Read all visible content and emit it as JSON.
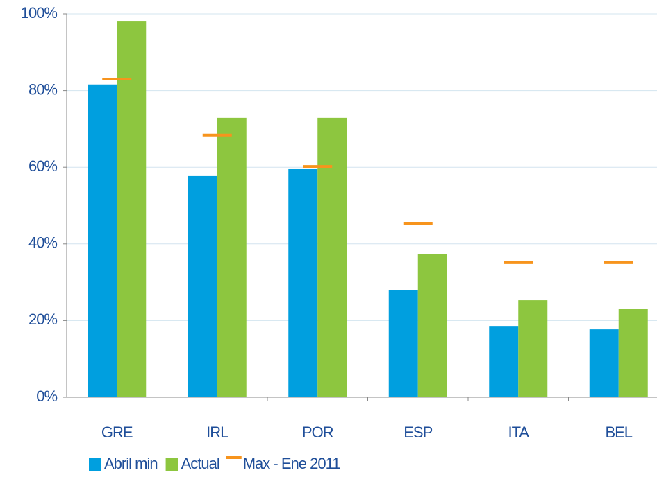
{
  "chart_data": {
    "type": "bar",
    "categories": [
      "GRE",
      "IRL",
      "POR",
      "ESP",
      "ITA",
      "BEL"
    ],
    "series": [
      {
        "name": "Abril min",
        "color": "#009fdf",
        "style": "bar",
        "values": [
          81.6,
          57.7,
          59.5,
          28.0,
          18.6,
          17.7
        ]
      },
      {
        "name": "Actual",
        "color": "#8dc63f",
        "style": "bar",
        "values": [
          98.0,
          72.9,
          72.9,
          37.4,
          25.3,
          23.1
        ]
      },
      {
        "name": "Max - Ene 2011",
        "color": "#f7941d",
        "style": "dash",
        "values": [
          83.0,
          68.4,
          60.2,
          45.4,
          35.1,
          35.1
        ]
      }
    ],
    "ylim": [
      0,
      100
    ],
    "yticks": [
      {
        "value": 0,
        "label": "0%"
      },
      {
        "value": 20,
        "label": "20%"
      },
      {
        "value": 40,
        "label": "40%"
      },
      {
        "value": 60,
        "label": "60%"
      },
      {
        "value": 80,
        "label": "80%"
      },
      {
        "value": 100,
        "label": "100%"
      }
    ],
    "grid": true,
    "legend": "bottom"
  }
}
